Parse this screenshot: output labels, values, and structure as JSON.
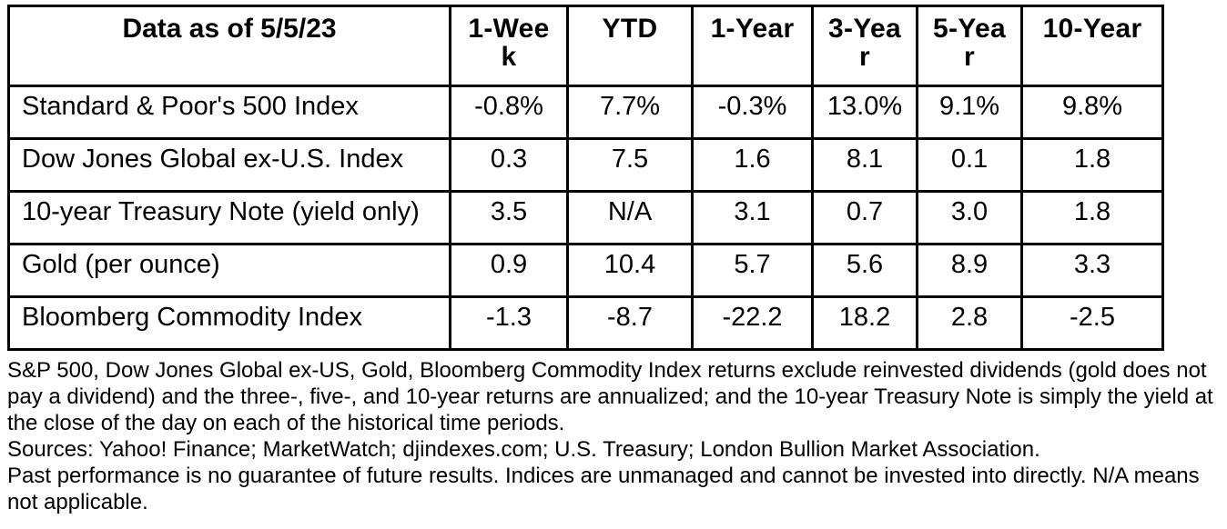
{
  "colors": {
    "text": "#000000",
    "background": "#ffffff",
    "table_border": "#000000"
  },
  "chart_data": {
    "type": "table",
    "title": "Data as of 5/5/23",
    "columns": [
      "Data as of 5/5/23",
      "1-Week",
      "YTD",
      "1-Year",
      "3-Year",
      "5-Year",
      "10-Year"
    ],
    "rows": [
      {
        "label": "Standard & Poor's 500 Index",
        "values": [
          "-0.8%",
          "7.7%",
          "-0.3%",
          "13.0%",
          "9.1%",
          "9.8%"
        ]
      },
      {
        "label": "Dow Jones Global ex-U.S. Index",
        "values": [
          "0.3",
          "7.5",
          "1.6",
          "8.1",
          "0.1",
          "1.8"
        ]
      },
      {
        "label": "10-year Treasury Note (yield only)",
        "values": [
          "3.5",
          "N/A",
          "3.1",
          "0.7",
          "3.0",
          "1.8"
        ]
      },
      {
        "label": "Gold (per ounce)",
        "values": [
          "0.9",
          "10.4",
          "5.7",
          "5.6",
          "8.9",
          "3.3"
        ]
      },
      {
        "label": "Bloomberg Commodity Index",
        "values": [
          "-1.3",
          "-8.7",
          "-22.2",
          "18.2",
          "2.8",
          "-2.5"
        ]
      }
    ]
  },
  "footnotes": {
    "methodology": "S&P 500, Dow Jones Global ex-US, Gold, Bloomberg Commodity Index returns exclude reinvested dividends (gold does not pay a dividend) and the three-, five-, and 10-year returns are annualized; and the 10-year Treasury Note is simply the yield at the close of the day on each of the historical time periods.",
    "sources": "Sources: Yahoo! Finance; MarketWatch; djindexes.com; U.S. Treasury; London Bullion Market Association.",
    "disclaimer": "Past performance is no guarantee of future results. Indices are unmanaged and cannot be invested into directly. N/A means not applicable."
  }
}
